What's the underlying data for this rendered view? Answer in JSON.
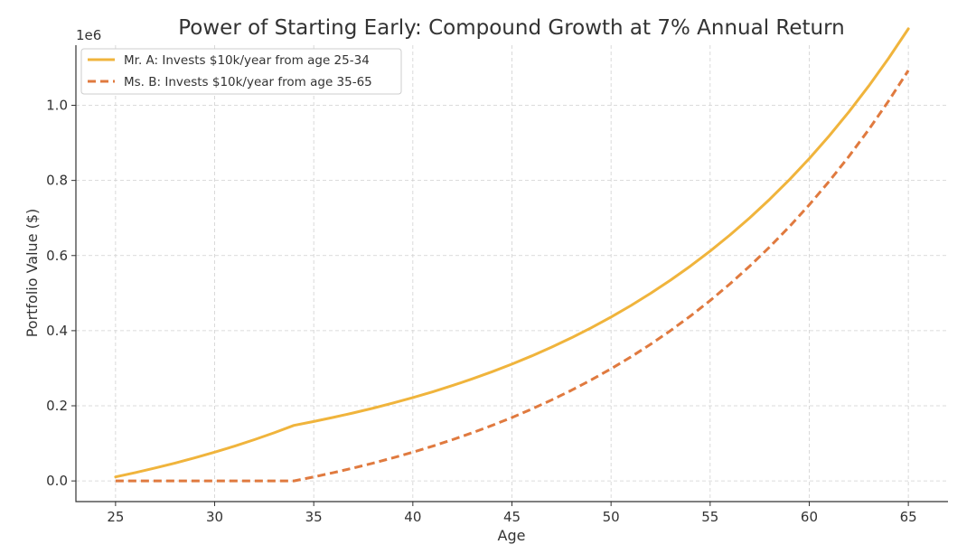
{
  "chart_data": {
    "type": "line",
    "title": "Power of Starting Early: Compound Growth at 7% Annual Return",
    "xlabel": "Age",
    "ylabel": "Portfolio Value ($)",
    "y_offset_label": "1e6",
    "xlim": [
      23,
      67
    ],
    "ylim": [
      -0.055,
      1.16
    ],
    "xticks": [
      25,
      30,
      35,
      40,
      45,
      50,
      55,
      60,
      65
    ],
    "yticks": [
      0.0,
      0.2,
      0.4,
      0.6,
      0.8,
      1.0
    ],
    "ytick_labels": [
      "0.0",
      "0.2",
      "0.4",
      "0.6",
      "0.8",
      "1.0"
    ],
    "grid": true,
    "legend_position": "top-left",
    "x": [
      25,
      26,
      27,
      28,
      29,
      30,
      31,
      32,
      33,
      34,
      35,
      36,
      37,
      38,
      39,
      40,
      41,
      42,
      43,
      44,
      45,
      46,
      47,
      48,
      49,
      50,
      51,
      52,
      53,
      54,
      55,
      56,
      57,
      58,
      59,
      60,
      61,
      62,
      63,
      64,
      65
    ],
    "series": [
      {
        "name": "Mr. A: Invests $10k/year from age 25-34",
        "color": "#f0b43c",
        "style": "solid",
        "values": [
          0.0107,
          0.0221,
          0.0344,
          0.0475,
          0.0615,
          0.0765,
          0.0926,
          0.1098,
          0.1282,
          0.1478,
          0.1582,
          0.1693,
          0.1811,
          0.1937,
          0.2073,
          0.2218,
          0.2373,
          0.2539,
          0.2717,
          0.2907,
          0.311,
          0.3328,
          0.3561,
          0.381,
          0.4077,
          0.4362,
          0.4668,
          0.4995,
          0.5344,
          0.5718,
          0.6119,
          0.6547,
          0.7005,
          0.7495,
          0.802,
          0.8581,
          0.9182,
          0.9825,
          1.0512,
          1.1248,
          1.2036
        ]
      },
      {
        "name": "Ms. B: Invests $10k/year from age 35-65",
        "color": "#e07a3f",
        "style": "dashed",
        "values": [
          0,
          0,
          0,
          0,
          0,
          0,
          0,
          0,
          0,
          0,
          0.0107,
          0.0221,
          0.0344,
          0.0475,
          0.0615,
          0.0765,
          0.0926,
          0.1098,
          0.1282,
          0.1478,
          0.1688,
          0.1914,
          0.2155,
          0.2413,
          0.2689,
          0.2985,
          0.3301,
          0.3639,
          0.4001,
          0.4388,
          0.4802,
          0.5246,
          0.572,
          0.6227,
          0.677,
          0.7351,
          0.7973,
          0.8639,
          0.9351,
          1.0113,
          1.0928
        ]
      }
    ]
  }
}
